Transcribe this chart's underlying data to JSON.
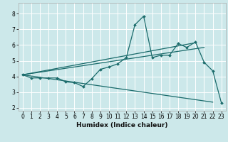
{
  "xlabel": "Humidex (Indice chaleur)",
  "bg_color": "#cce8ea",
  "line_color": "#1a6b6b",
  "grid_color": "#ffffff",
  "xlim": [
    -0.5,
    23.5
  ],
  "ylim": [
    1.8,
    8.7
  ],
  "yticks": [
    2,
    3,
    4,
    5,
    6,
    7,
    8
  ],
  "xticks": [
    0,
    1,
    2,
    3,
    4,
    5,
    6,
    7,
    8,
    9,
    10,
    11,
    12,
    13,
    14,
    15,
    16,
    17,
    18,
    19,
    20,
    21,
    22,
    23
  ],
  "series1_x": [
    0,
    1,
    2,
    3,
    4,
    5,
    6,
    7,
    8,
    9,
    10,
    11,
    12,
    13,
    14,
    15,
    16,
    17,
    18,
    19,
    20,
    21,
    22,
    23
  ],
  "series1_y": [
    4.1,
    3.9,
    3.9,
    3.9,
    3.9,
    3.65,
    3.6,
    3.35,
    3.85,
    4.45,
    4.6,
    4.8,
    5.2,
    7.3,
    7.85,
    5.2,
    5.35,
    5.35,
    6.1,
    5.85,
    6.2,
    4.9,
    4.35,
    2.3
  ],
  "series2_x": [
    0,
    22
  ],
  "series2_y": [
    4.1,
    2.35
  ],
  "series3_x": [
    0,
    21
  ],
  "series3_y": [
    4.1,
    5.85
  ],
  "series4_x": [
    0,
    20
  ],
  "series4_y": [
    4.1,
    6.15
  ],
  "xlabel_fontsize": 6.5,
  "tick_fontsize": 5.5
}
